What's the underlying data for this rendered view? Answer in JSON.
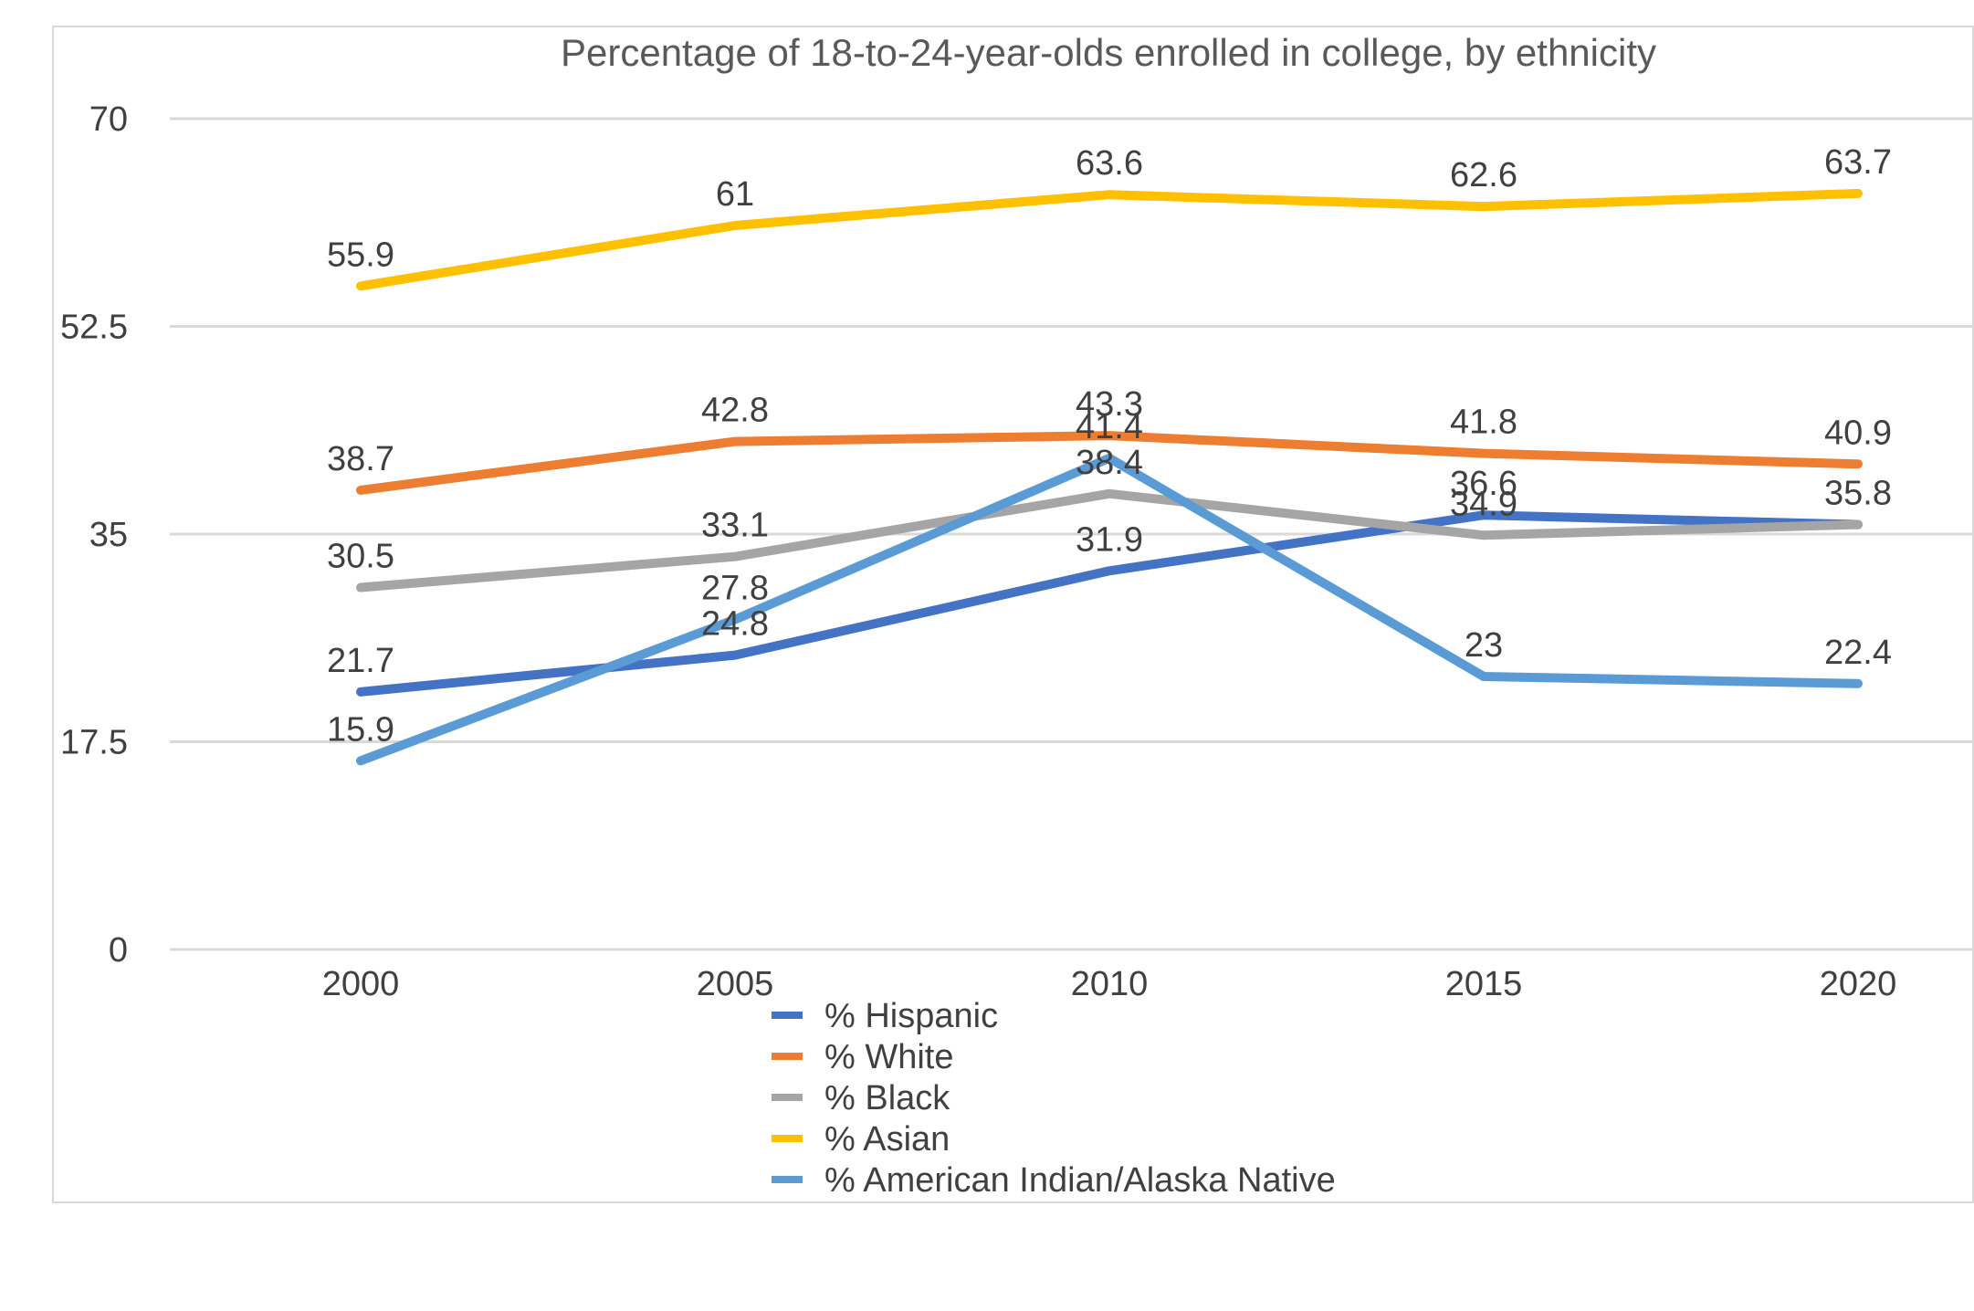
{
  "chart_data": {
    "type": "line",
    "title": "Percentage of 18-to-24-year-olds enrolled in college, by ethnicity",
    "xlabel": "",
    "ylabel": "",
    "categories": [
      "2000",
      "2005",
      "2010",
      "2015",
      "2020"
    ],
    "ylim": [
      0,
      70
    ],
    "yticks": [
      "0",
      "17.5",
      "35",
      "52.5",
      "70"
    ],
    "grid": true,
    "legend_position": "bottom",
    "series": [
      {
        "name": "% Hispanic",
        "values": [
          21.7,
          24.8,
          31.9,
          36.6,
          35.8
        ],
        "labels": [
          "21.7",
          "24.8",
          "31.9",
          "36.6",
          "35.8"
        ],
        "color": "#4472c4"
      },
      {
        "name": "% White",
        "values": [
          38.7,
          42.8,
          43.3,
          41.8,
          40.9
        ],
        "labels": [
          "38.7",
          "42.8",
          "43.3",
          "41.8",
          "40.9"
        ],
        "color": "#ed7d31"
      },
      {
        "name": "% Black",
        "values": [
          30.5,
          33.1,
          38.4,
          34.9,
          35.8
        ],
        "labels": [
          "30.5",
          "33.1",
          "38.4",
          "34.9",
          ""
        ],
        "color": "#a5a5a5"
      },
      {
        "name": "% Asian",
        "values": [
          55.9,
          61,
          63.6,
          62.6,
          63.7
        ],
        "labels": [
          "55.9",
          "61",
          "63.6",
          "62.6",
          "63.7"
        ],
        "color": "#ffc000"
      },
      {
        "name": "% American Indian/Alaska Native",
        "values": [
          15.9,
          27.8,
          41.4,
          23,
          22.4
        ],
        "labels": [
          "15.9",
          "27.8",
          "41.4",
          "23",
          "22.4"
        ],
        "color": "#5b9bd5"
      }
    ]
  }
}
